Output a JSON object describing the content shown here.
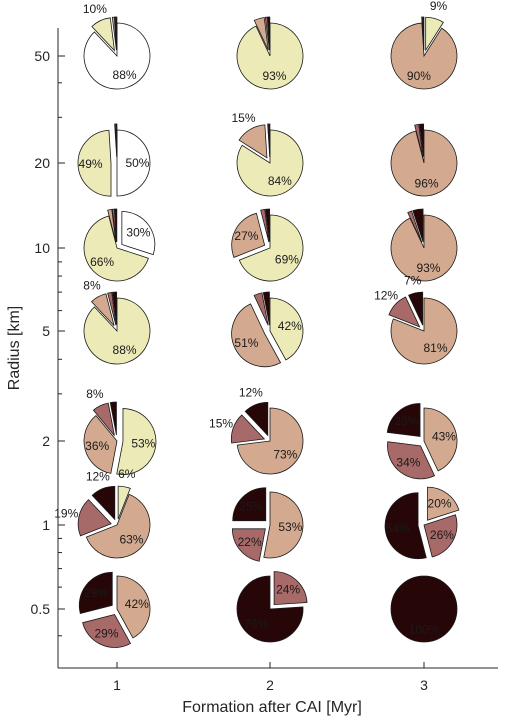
{
  "chart_data": {
    "type": "pie",
    "xlabel": "Formation after CAI [Myr]",
    "ylabel": "Radius [km]",
    "x_ticks": [
      "1",
      "2",
      "3"
    ],
    "y_ticks": [
      "50",
      "20",
      "10",
      "5",
      "2",
      "1",
      "0.5"
    ],
    "y_scale": "log",
    "grid": false,
    "colors": [
      "#ffffff",
      "#ecebb8",
      "#d3aa90",
      "#a86a68",
      "#270608"
    ],
    "pies": [
      {
        "formation": 1,
        "radius": 50,
        "slices": [
          88,
          10,
          1,
          0.5,
          0.5
        ],
        "labels": [
          "88%",
          "10%",
          "",
          "",
          ""
        ],
        "explode": [
          0,
          1,
          1,
          1,
          1
        ]
      },
      {
        "formation": 2,
        "radius": 50,
        "slices": [
          0,
          93,
          5,
          1,
          1
        ],
        "labels": [
          "",
          "93%",
          "",
          "",
          ""
        ],
        "explode": [
          0,
          0,
          1,
          1,
          1
        ]
      },
      {
        "formation": 3,
        "radius": 50,
        "slices": [
          0,
          9,
          90,
          0.5,
          0.5
        ],
        "labels": [
          "",
          "9%",
          "90%",
          "",
          ""
        ],
        "explode": [
          0,
          1,
          0,
          1,
          1
        ]
      },
      {
        "formation": 1,
        "radius": 20,
        "slices": [
          50,
          49,
          0.5,
          0.3,
          0.2
        ],
        "labels": [
          "50%",
          "49%",
          "",
          "",
          ""
        ],
        "explode": [
          0,
          1,
          1,
          1,
          1
        ]
      },
      {
        "formation": 2,
        "radius": 20,
        "slices": [
          0,
          84,
          15,
          0.5,
          0.5
        ],
        "labels": [
          "",
          "84%",
          "15%",
          "",
          ""
        ],
        "explode": [
          0,
          0,
          1,
          1,
          1
        ]
      },
      {
        "formation": 3,
        "radius": 20,
        "slices": [
          0,
          0,
          96,
          2,
          2
        ],
        "labels": [
          "",
          "",
          "96%",
          "",
          ""
        ],
        "explode": [
          0,
          0,
          0,
          1,
          1
        ]
      },
      {
        "formation": 1,
        "radius": 10,
        "slices": [
          30,
          66,
          2,
          1,
          1
        ],
        "labels": [
          "30%",
          "66%",
          "",
          "",
          ""
        ],
        "explode": [
          1,
          0,
          1,
          1,
          1
        ]
      },
      {
        "formation": 2,
        "radius": 10,
        "slices": [
          0,
          69,
          27,
          2,
          2
        ],
        "labels": [
          "",
          "69%",
          "27%",
          "",
          ""
        ],
        "explode": [
          0,
          0,
          1,
          1,
          1
        ]
      },
      {
        "formation": 3,
        "radius": 10,
        "slices": [
          0,
          0,
          93,
          2,
          5
        ],
        "labels": [
          "",
          "",
          "93%",
          "",
          ""
        ],
        "explode": [
          0,
          0,
          0,
          1,
          1
        ]
      },
      {
        "formation": 1,
        "radius": 5,
        "slices": [
          0,
          88,
          8,
          2,
          2
        ],
        "labels": [
          "",
          "88%",
          "8%",
          "",
          ""
        ],
        "explode": [
          0,
          0,
          1,
          1,
          1
        ]
      },
      {
        "formation": 2,
        "radius": 5,
        "slices": [
          0,
          42,
          51,
          4,
          3
        ],
        "labels": [
          "",
          "42%",
          "51%",
          "",
          ""
        ],
        "explode": [
          0,
          0,
          1,
          1,
          1
        ]
      },
      {
        "formation": 3,
        "radius": 5,
        "slices": [
          0,
          0,
          81,
          12,
          7
        ],
        "labels": [
          "",
          "",
          "81%",
          "12%",
          "7%"
        ],
        "explode": [
          0,
          0,
          0,
          1,
          1
        ]
      },
      {
        "formation": 1,
        "radius": 2,
        "slices": [
          0,
          53,
          36,
          8,
          3
        ],
        "labels": [
          "",
          "53%",
          "36%",
          "8%",
          ""
        ],
        "explode": [
          0,
          1,
          0,
          1,
          1
        ]
      },
      {
        "formation": 2,
        "radius": 2,
        "slices": [
          0,
          0,
          73,
          15,
          12
        ],
        "labels": [
          "",
          "",
          "73%",
          "15%",
          "12%"
        ],
        "explode": [
          0,
          0,
          0,
          1,
          1
        ]
      },
      {
        "formation": 3,
        "radius": 2,
        "slices": [
          0,
          0,
          43,
          34,
          23
        ],
        "labels": [
          "",
          "",
          "43%",
          "34%",
          "23%"
        ],
        "explode": [
          0,
          0,
          0,
          1,
          1
        ]
      },
      {
        "formation": 1,
        "radius": 1,
        "slices": [
          0,
          6,
          63,
          19,
          12
        ],
        "labels": [
          "",
          "6%",
          "63%",
          "19%",
          "12%"
        ],
        "explode": [
          0,
          1,
          0,
          1,
          1
        ]
      },
      {
        "formation": 2,
        "radius": 1,
        "slices": [
          0,
          0,
          53,
          22,
          25
        ],
        "labels": [
          "",
          "",
          "53%",
          "22%",
          "25%"
        ],
        "explode": [
          0,
          0,
          0,
          1,
          1
        ]
      },
      {
        "formation": 3,
        "radius": 1,
        "slices": [
          0,
          0,
          20,
          26,
          54
        ],
        "labels": [
          "",
          "",
          "20%",
          "26%",
          "54%"
        ],
        "explode": [
          0,
          0,
          1,
          0,
          1
        ]
      },
      {
        "formation": 1,
        "radius": 0.5,
        "slices": [
          0,
          0,
          42,
          29,
          29
        ],
        "labels": [
          "",
          "",
          "42%",
          "29%",
          "29%"
        ],
        "explode": [
          0,
          0,
          0,
          1,
          1
        ]
      },
      {
        "formation": 2,
        "radius": 0.5,
        "slices": [
          0,
          0,
          0,
          24,
          76
        ],
        "labels": [
          "",
          "",
          "",
          "24%",
          "76%"
        ],
        "explode": [
          0,
          0,
          0,
          1,
          0
        ]
      },
      {
        "formation": 3,
        "radius": 0.5,
        "slices": [
          0,
          0,
          0,
          0,
          100
        ],
        "labels": [
          "",
          "",
          "",
          "",
          "100%"
        ],
        "explode": [
          0,
          0,
          0,
          0,
          0
        ]
      }
    ]
  }
}
